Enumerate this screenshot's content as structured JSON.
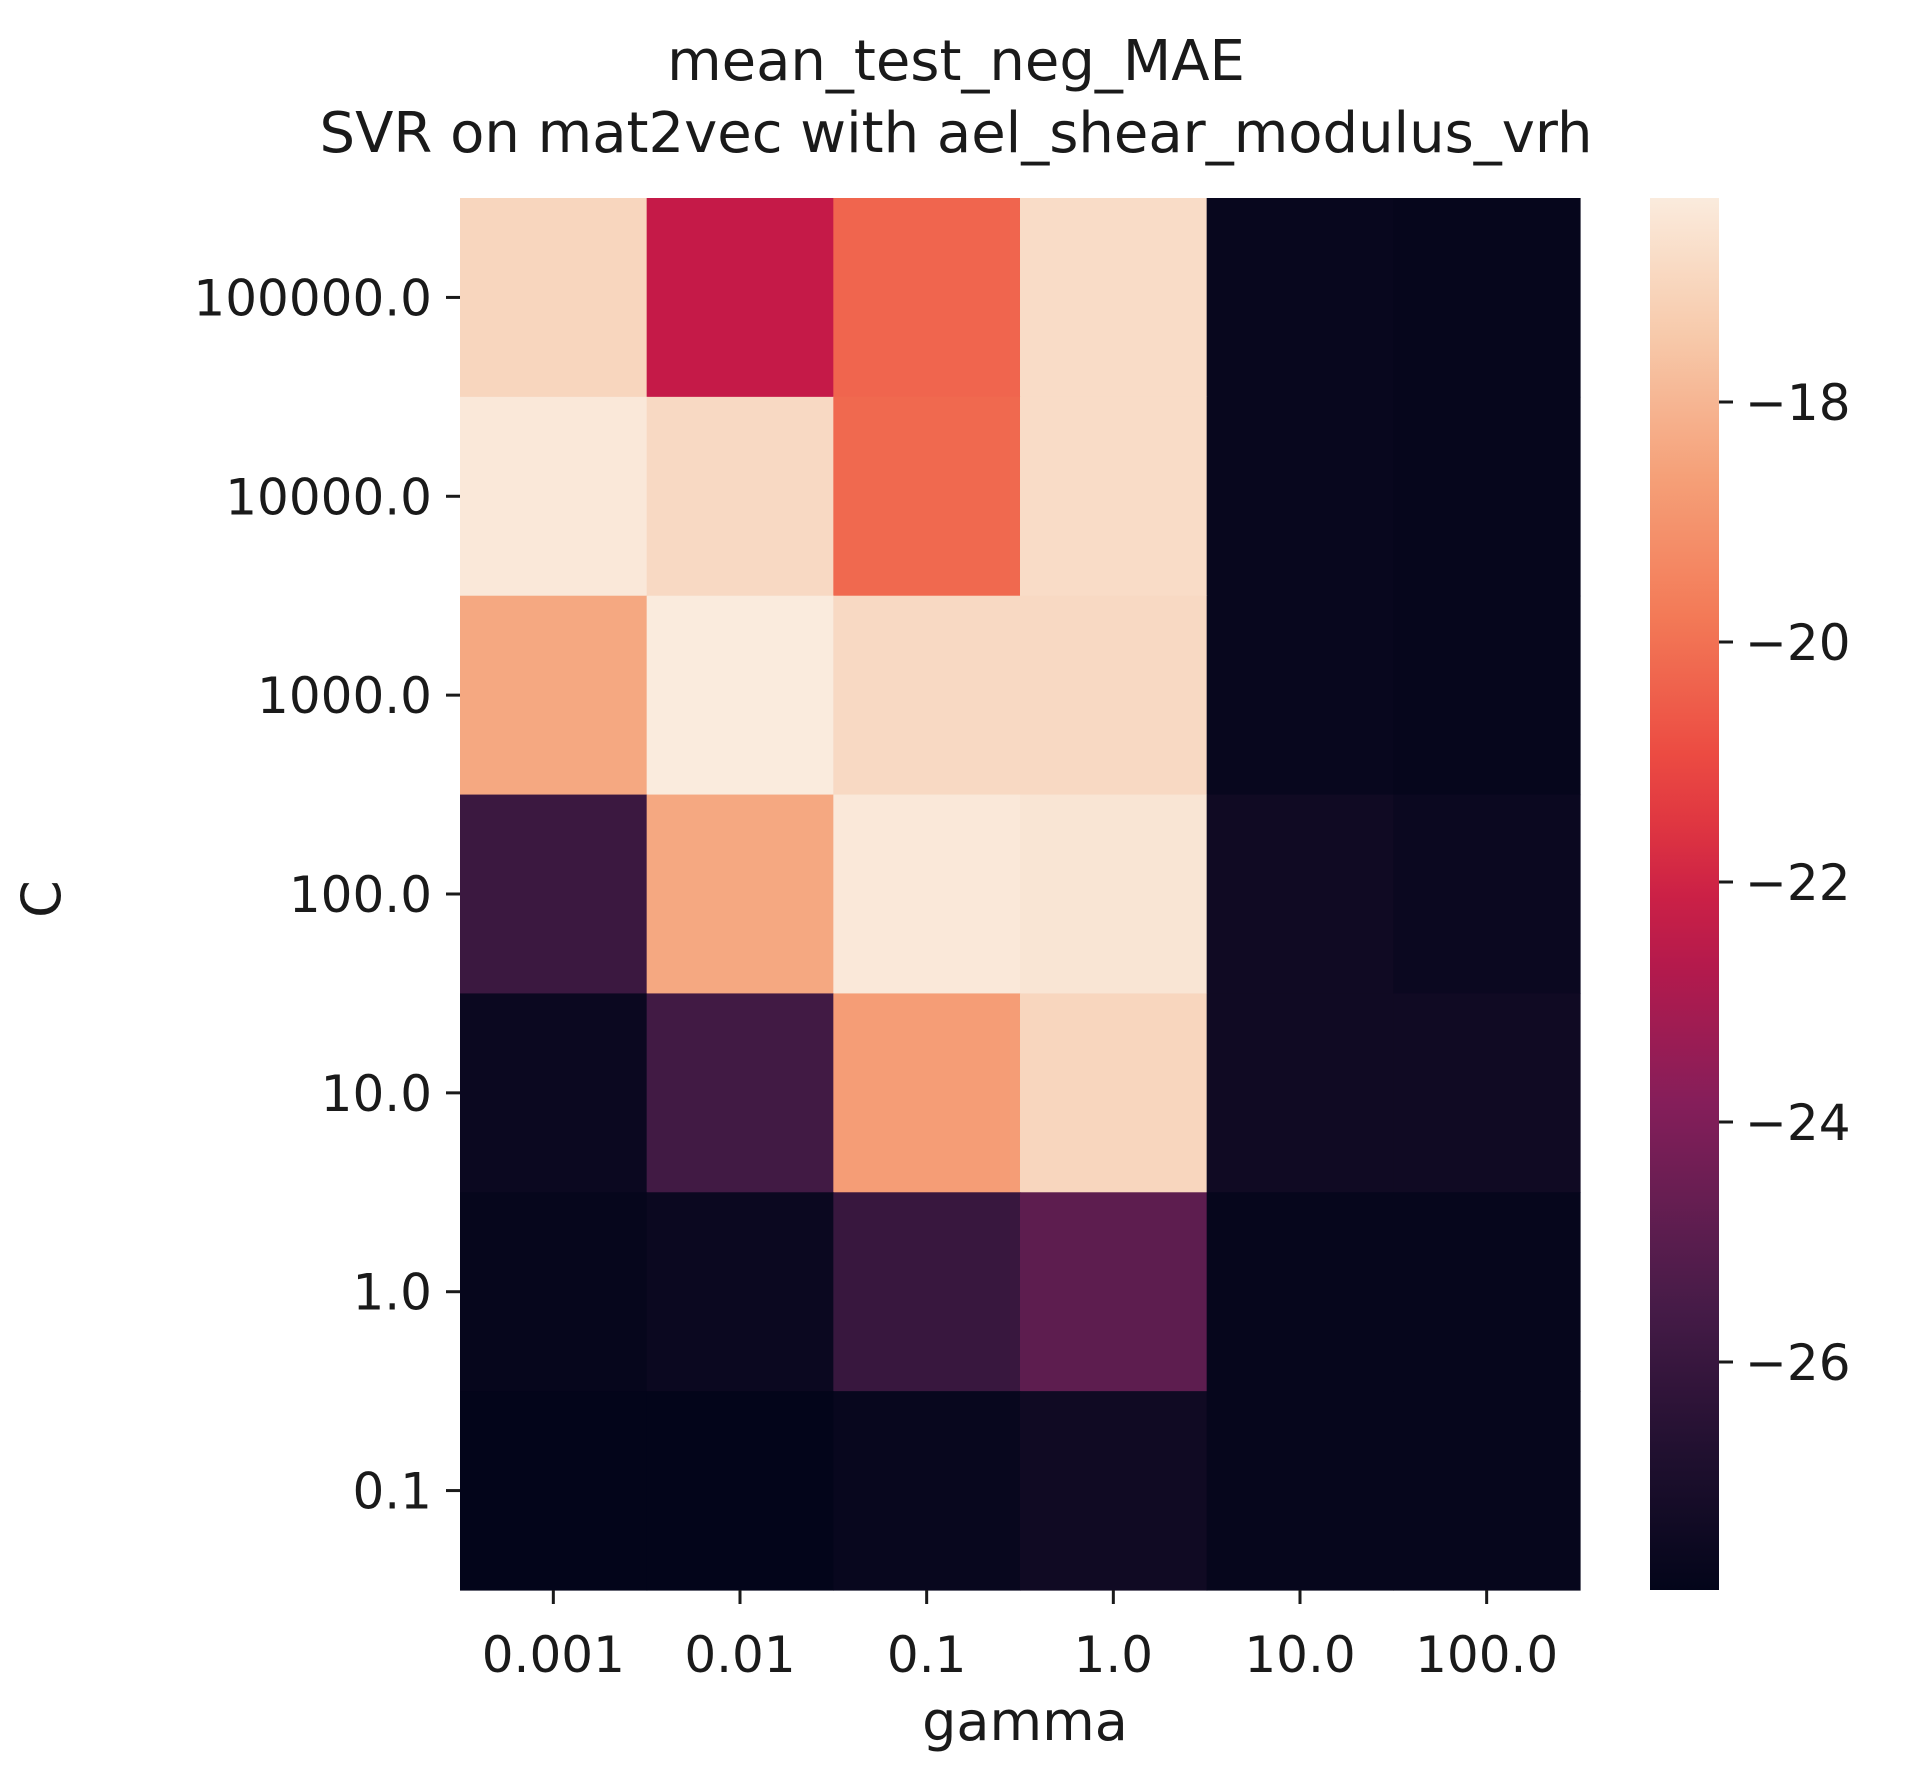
{
  "chart_data": {
    "type": "heatmap",
    "title": "mean_test_neg_MAE",
    "subtitle": "SVR on mat2vec with ael_shear_modulus_vrh",
    "xlabel": "gamma",
    "ylabel": "C",
    "x": [
      "0.001",
      "0.01",
      "0.1",
      "1.0",
      "10.0",
      "100.0"
    ],
    "y": [
      "100000.0",
      "10000.0",
      "1000.0",
      "100.0",
      "10.0",
      "1.0",
      "0.1"
    ],
    "values": [
      [
        -17.0,
        -22.3,
        -20.3,
        -16.8,
        -27.7,
        -27.8
      ],
      [
        -16.4,
        -16.9,
        -20.2,
        -16.8,
        -27.7,
        -27.8
      ],
      [
        -18.4,
        -16.3,
        -16.9,
        -16.9,
        -27.7,
        -27.8
      ],
      [
        -25.9,
        -18.4,
        -16.4,
        -16.5,
        -27.4,
        -27.6
      ],
      [
        -27.6,
        -25.7,
        -18.7,
        -17.0,
        -27.4,
        -27.4
      ],
      [
        -27.8,
        -27.6,
        -26.0,
        -24.9,
        -27.8,
        -27.8
      ],
      [
        -27.9,
        -27.9,
        -27.7,
        -27.4,
        -27.8,
        -27.8
      ]
    ],
    "colormap": "rocket",
    "colorbar": {
      "vmin": -27.9,
      "vmax": -16.3,
      "ticks": [
        -18,
        -20,
        -22,
        -24,
        -26
      ],
      "tick_labels": [
        "−18",
        "−20",
        "−22",
        "−24",
        "−26"
      ]
    },
    "grid": false,
    "legend": "none"
  }
}
